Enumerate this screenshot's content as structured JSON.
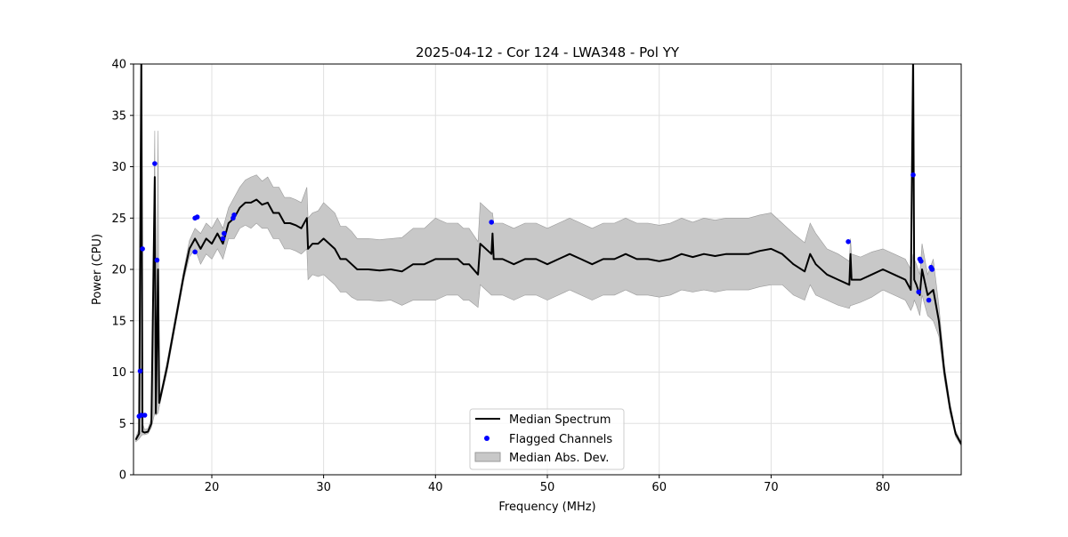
{
  "chart_data": {
    "type": "line",
    "title": "2025-04-12 - Cor 124 - LWA348 - Pol YY",
    "xlabel": "Frequency (MHz)",
    "ylabel": "Power (CPU)",
    "xlim": [
      13.0,
      87.0
    ],
    "ylim": [
      0,
      40
    ],
    "xticks": [
      20,
      30,
      40,
      50,
      60,
      70,
      80
    ],
    "xtick_labels": [
      "20",
      "30",
      "40",
      "50",
      "60",
      "70",
      "80"
    ],
    "yticks": [
      0,
      5,
      10,
      15,
      20,
      25,
      30,
      35,
      40
    ],
    "ytick_labels": [
      "0",
      "5",
      "10",
      "15",
      "20",
      "25",
      "30",
      "35",
      "40"
    ],
    "grid": true,
    "legend_position": "bottom-center",
    "legend": {
      "median": "Median Spectrum",
      "flagged": "Flagged Channels",
      "mad": "Median Abs. Dev."
    },
    "colors": {
      "median": "#000000",
      "flagged": "#0000ff",
      "mad_fill": "#c8c8c8",
      "mad_edge": "#9a9a9a",
      "grid": "#e0e0e0"
    },
    "series": [
      {
        "name": "Median Spectrum",
        "points": [
          [
            13.2,
            3.4
          ],
          [
            13.5,
            4.0
          ],
          [
            13.7,
            41
          ],
          [
            13.8,
            4.2
          ],
          [
            14.0,
            4.1
          ],
          [
            14.3,
            4.2
          ],
          [
            14.6,
            5.0
          ],
          [
            14.9,
            29.0
          ],
          [
            15.0,
            6.0
          ],
          [
            15.2,
            20.0
          ],
          [
            15.3,
            7.0
          ],
          [
            15.6,
            8.5
          ],
          [
            16.0,
            10.5
          ],
          [
            16.5,
            13.5
          ],
          [
            17.0,
            16.5
          ],
          [
            17.5,
            19.5
          ],
          [
            18.0,
            22.0
          ],
          [
            18.5,
            23.0
          ],
          [
            19.0,
            22.0
          ],
          [
            19.5,
            23.0
          ],
          [
            20.0,
            22.5
          ],
          [
            20.5,
            23.5
          ],
          [
            21.0,
            22.5
          ],
          [
            21.5,
            24.5
          ],
          [
            22.0,
            25.0
          ],
          [
            22.5,
            26.0
          ],
          [
            23.0,
            26.5
          ],
          [
            23.5,
            26.5
          ],
          [
            24.0,
            26.8
          ],
          [
            24.5,
            26.3
          ],
          [
            25.0,
            26.5
          ],
          [
            25.5,
            25.5
          ],
          [
            26.0,
            25.5
          ],
          [
            26.5,
            24.5
          ],
          [
            27.0,
            24.5
          ],
          [
            27.5,
            24.3
          ],
          [
            28.0,
            24.0
          ],
          [
            28.5,
            25.0
          ],
          [
            28.6,
            22.0
          ],
          [
            29.0,
            22.5
          ],
          [
            29.5,
            22.5
          ],
          [
            30.0,
            23.0
          ],
          [
            30.5,
            22.5
          ],
          [
            31.0,
            22.0
          ],
          [
            31.5,
            21.0
          ],
          [
            32.0,
            21.0
          ],
          [
            32.5,
            20.5
          ],
          [
            33.0,
            20.0
          ],
          [
            34.0,
            20.0
          ],
          [
            35.0,
            19.9
          ],
          [
            36.0,
            20.0
          ],
          [
            37.0,
            19.8
          ],
          [
            38.0,
            20.5
          ],
          [
            39.0,
            20.5
          ],
          [
            40.0,
            21.0
          ],
          [
            41.0,
            21.0
          ],
          [
            42.0,
            21.0
          ],
          [
            42.5,
            20.5
          ],
          [
            43.0,
            20.5
          ],
          [
            43.8,
            19.5
          ],
          [
            44.0,
            22.5
          ],
          [
            45.0,
            21.5
          ],
          [
            45.1,
            23.5
          ],
          [
            45.2,
            21.0
          ],
          [
            46.0,
            21.0
          ],
          [
            47.0,
            20.5
          ],
          [
            48.0,
            21.0
          ],
          [
            49.0,
            21.0
          ],
          [
            50.0,
            20.5
          ],
          [
            51.0,
            21.0
          ],
          [
            52.0,
            21.5
          ],
          [
            53.0,
            21.0
          ],
          [
            54.0,
            20.5
          ],
          [
            55.0,
            21.0
          ],
          [
            56.0,
            21.0
          ],
          [
            57.0,
            21.5
          ],
          [
            58.0,
            21.0
          ],
          [
            59.0,
            21.0
          ],
          [
            60.0,
            20.8
          ],
          [
            61.0,
            21.0
          ],
          [
            62.0,
            21.5
          ],
          [
            63.0,
            21.2
          ],
          [
            64.0,
            21.5
          ],
          [
            65.0,
            21.3
          ],
          [
            66.0,
            21.5
          ],
          [
            67.0,
            21.5
          ],
          [
            68.0,
            21.5
          ],
          [
            69.0,
            21.8
          ],
          [
            70.0,
            22.0
          ],
          [
            71.0,
            21.5
          ],
          [
            72.0,
            20.5
          ],
          [
            73.0,
            19.8
          ],
          [
            73.5,
            21.5
          ],
          [
            74.0,
            20.5
          ],
          [
            75.0,
            19.5
          ],
          [
            76.0,
            19.0
          ],
          [
            77.0,
            18.5
          ],
          [
            77.1,
            21.5
          ],
          [
            77.2,
            19.0
          ],
          [
            78.0,
            19.0
          ],
          [
            79.0,
            19.5
          ],
          [
            80.0,
            20.0
          ],
          [
            81.0,
            19.5
          ],
          [
            82.0,
            19.0
          ],
          [
            82.5,
            18.0
          ],
          [
            82.7,
            41
          ],
          [
            82.8,
            19.0
          ],
          [
            83.0,
            18.5
          ],
          [
            83.3,
            17.5
          ],
          [
            83.5,
            20.0
          ],
          [
            84.0,
            17.5
          ],
          [
            84.5,
            18.0
          ],
          [
            85.0,
            15.0
          ],
          [
            85.5,
            10.0
          ],
          [
            86.0,
            6.5
          ],
          [
            86.5,
            4.0
          ],
          [
            87.0,
            3.0
          ]
        ]
      }
    ],
    "mad_band": {
      "name": "Median Abs. Dev.",
      "points": [
        [
          13.2,
          3.2,
          3.6
        ],
        [
          13.5,
          3.5,
          4.5
        ],
        [
          13.7,
          3.8,
          33.0
        ],
        [
          13.8,
          3.9,
          5.0
        ],
        [
          14.0,
          3.9,
          4.4
        ],
        [
          14.3,
          4.0,
          4.5
        ],
        [
          14.6,
          4.6,
          5.5
        ],
        [
          14.9,
          6.0,
          33.5
        ],
        [
          15.0,
          5.8,
          6.3
        ],
        [
          15.2,
          6.0,
          33.5
        ],
        [
          15.3,
          6.6,
          7.4
        ],
        [
          15.6,
          8.1,
          8.9
        ],
        [
          16.0,
          10.0,
          11.0
        ],
        [
          16.5,
          13.0,
          14.0
        ],
        [
          17.0,
          16.0,
          17.0
        ],
        [
          17.5,
          19.0,
          20.0
        ],
        [
          18.0,
          21.2,
          22.8
        ],
        [
          18.5,
          22.0,
          24.0
        ],
        [
          19.0,
          20.5,
          23.5
        ],
        [
          19.5,
          21.5,
          24.5
        ],
        [
          20.0,
          21.0,
          24.0
        ],
        [
          20.5,
          22.0,
          25.0
        ],
        [
          21.0,
          21.0,
          24.0
        ],
        [
          21.5,
          23.0,
          26.0
        ],
        [
          22.0,
          23.0,
          27.0
        ],
        [
          22.5,
          24.0,
          28.0
        ],
        [
          23.0,
          24.3,
          28.7
        ],
        [
          23.5,
          24.0,
          29.0
        ],
        [
          24.0,
          24.5,
          29.2
        ],
        [
          24.5,
          24.0,
          28.6
        ],
        [
          25.0,
          24.0,
          29.0
        ],
        [
          25.5,
          23.0,
          28.0
        ],
        [
          26.0,
          23.0,
          28.0
        ],
        [
          26.5,
          22.0,
          27.0
        ],
        [
          27.0,
          22.0,
          27.0
        ],
        [
          27.5,
          21.8,
          26.8
        ],
        [
          28.0,
          21.5,
          26.5
        ],
        [
          28.5,
          22.0,
          28.0
        ],
        [
          28.6,
          19.0,
          25.0
        ],
        [
          29.0,
          19.5,
          25.5
        ],
        [
          29.5,
          19.3,
          25.7
        ],
        [
          30.0,
          19.5,
          26.5
        ],
        [
          30.5,
          19.0,
          26.0
        ],
        [
          31.0,
          18.5,
          25.5
        ],
        [
          31.5,
          17.8,
          24.2
        ],
        [
          32.0,
          17.8,
          24.2
        ],
        [
          32.5,
          17.3,
          23.7
        ],
        [
          33.0,
          17.0,
          23.0
        ],
        [
          34.0,
          17.0,
          23.0
        ],
        [
          35.0,
          16.9,
          22.9
        ],
        [
          36.0,
          17.0,
          23.0
        ],
        [
          37.0,
          16.5,
          23.1
        ],
        [
          38.0,
          17.0,
          24.0
        ],
        [
          39.0,
          17.0,
          24.0
        ],
        [
          40.0,
          17.0,
          25.0
        ],
        [
          41.0,
          17.5,
          24.5
        ],
        [
          42.0,
          17.5,
          24.5
        ],
        [
          42.5,
          17.0,
          24.0
        ],
        [
          43.0,
          17.0,
          24.0
        ],
        [
          43.8,
          16.3,
          22.7
        ],
        [
          44.0,
          18.5,
          26.5
        ],
        [
          45.0,
          17.5,
          25.5
        ],
        [
          45.1,
          17.5,
          25.5
        ],
        [
          45.2,
          17.5,
          24.5
        ],
        [
          46.0,
          17.5,
          24.5
        ],
        [
          47.0,
          17.0,
          24.0
        ],
        [
          48.0,
          17.5,
          24.5
        ],
        [
          49.0,
          17.5,
          24.5
        ],
        [
          50.0,
          17.0,
          24.0
        ],
        [
          51.0,
          17.5,
          24.5
        ],
        [
          52.0,
          18.0,
          25.0
        ],
        [
          53.0,
          17.5,
          24.5
        ],
        [
          54.0,
          17.0,
          24.0
        ],
        [
          55.0,
          17.5,
          24.5
        ],
        [
          56.0,
          17.5,
          24.5
        ],
        [
          57.0,
          18.0,
          25.0
        ],
        [
          58.0,
          17.5,
          24.5
        ],
        [
          59.0,
          17.5,
          24.5
        ],
        [
          60.0,
          17.3,
          24.3
        ],
        [
          61.0,
          17.5,
          24.5
        ],
        [
          62.0,
          18.0,
          25.0
        ],
        [
          63.0,
          17.8,
          24.6
        ],
        [
          64.0,
          18.0,
          25.0
        ],
        [
          65.0,
          17.8,
          24.8
        ],
        [
          66.0,
          18.0,
          25.0
        ],
        [
          67.0,
          18.0,
          25.0
        ],
        [
          68.0,
          18.0,
          25.0
        ],
        [
          69.0,
          18.3,
          25.3
        ],
        [
          70.0,
          18.5,
          25.5
        ],
        [
          71.0,
          18.5,
          24.5
        ],
        [
          72.0,
          17.5,
          23.5
        ],
        [
          73.0,
          17.0,
          22.6
        ],
        [
          73.5,
          18.5,
          24.5
        ],
        [
          74.0,
          17.5,
          23.5
        ],
        [
          75.0,
          17.0,
          22.0
        ],
        [
          76.0,
          16.5,
          21.5
        ],
        [
          77.0,
          16.2,
          20.8
        ],
        [
          77.1,
          16.5,
          23.0
        ],
        [
          77.2,
          16.5,
          21.5
        ],
        [
          78.0,
          16.8,
          21.2
        ],
        [
          79.0,
          17.3,
          21.7
        ],
        [
          80.0,
          18.0,
          22.0
        ],
        [
          81.0,
          17.5,
          21.5
        ],
        [
          82.0,
          17.0,
          21.0
        ],
        [
          82.5,
          16.0,
          20.0
        ],
        [
          82.7,
          16.5,
          21.5
        ],
        [
          82.8,
          17.0,
          21.0
        ],
        [
          83.0,
          16.5,
          20.5
        ],
        [
          83.3,
          15.5,
          19.5
        ],
        [
          83.5,
          17.5,
          22.5
        ],
        [
          84.0,
          15.5,
          19.5
        ],
        [
          84.5,
          15.0,
          21.0
        ],
        [
          85.0,
          13.5,
          16.5
        ],
        [
          85.5,
          9.3,
          10.7
        ],
        [
          86.0,
          6.0,
          7.0
        ],
        [
          86.5,
          3.7,
          4.3
        ],
        [
          87.0,
          2.8,
          3.2
        ]
      ]
    },
    "flagged_channels": {
      "name": "Flagged Channels",
      "points": [
        [
          13.5,
          5.7
        ],
        [
          13.6,
          10.1
        ],
        [
          13.7,
          5.8
        ],
        [
          13.8,
          22.0
        ],
        [
          14.0,
          5.8
        ],
        [
          14.9,
          30.3
        ],
        [
          15.1,
          20.9
        ],
        [
          18.5,
          21.7
        ],
        [
          18.5,
          25.0
        ],
        [
          18.7,
          25.1
        ],
        [
          21.0,
          23.0
        ],
        [
          21.1,
          23.5
        ],
        [
          21.9,
          25.0
        ],
        [
          22.0,
          25.3
        ],
        [
          45.0,
          24.6
        ],
        [
          76.9,
          22.7
        ],
        [
          82.7,
          29.2
        ],
        [
          83.2,
          17.8
        ],
        [
          83.3,
          21.0
        ],
        [
          83.4,
          20.8
        ],
        [
          84.1,
          17.0
        ],
        [
          84.3,
          20.2
        ],
        [
          84.4,
          20.0
        ]
      ]
    }
  }
}
